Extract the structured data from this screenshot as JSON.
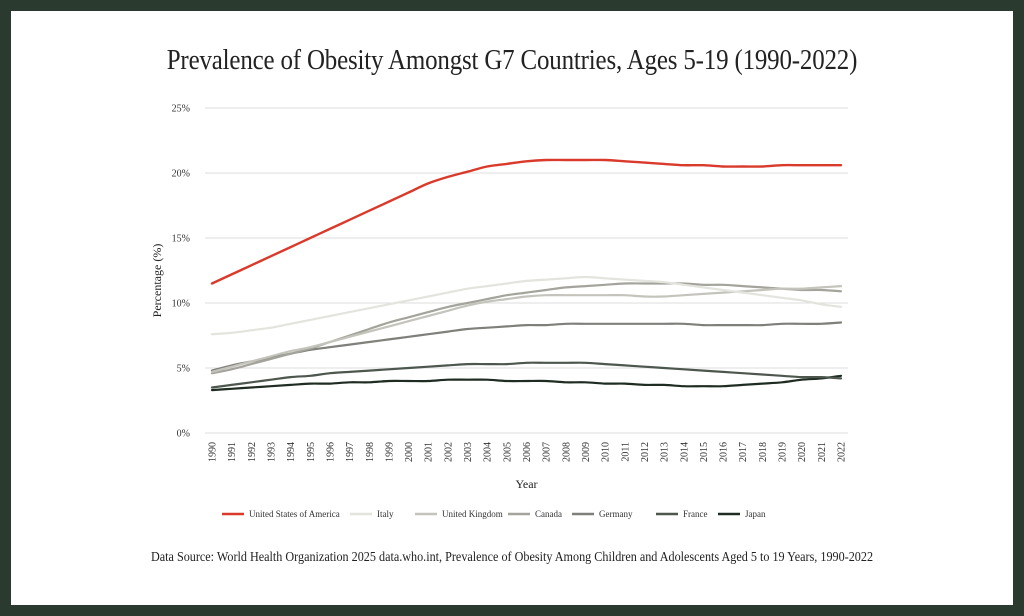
{
  "chart_data": {
    "type": "line",
    "title": "Prevalence of Obesity Amongst G7 Countries, Ages 5-19 (1990-2022)",
    "xlabel": "Year",
    "ylabel": "Percentage (%)",
    "ylim": [
      0,
      25
    ],
    "yticks": [
      0,
      5,
      10,
      15,
      20,
      25
    ],
    "ytick_labels": [
      "0%",
      "5%",
      "10%",
      "15%",
      "20%",
      "25%"
    ],
    "grid": "horizontal",
    "legend_position": "bottom",
    "x": [
      1990,
      1991,
      1992,
      1993,
      1994,
      1995,
      1996,
      1997,
      1998,
      1999,
      2000,
      2001,
      2002,
      2003,
      2004,
      2005,
      2006,
      2007,
      2008,
      2009,
      2010,
      2011,
      2012,
      2013,
      2014,
      2015,
      2016,
      2017,
      2018,
      2019,
      2020,
      2021,
      2022
    ],
    "series": [
      {
        "name": "United States of America",
        "color": "#d93a2b",
        "values": [
          11.5,
          12.2,
          12.9,
          13.6,
          14.3,
          15.0,
          15.7,
          16.4,
          17.1,
          17.8,
          18.5,
          19.2,
          19.7,
          20.1,
          20.5,
          20.7,
          20.9,
          21.0,
          21.0,
          21.0,
          21.0,
          20.9,
          20.8,
          20.7,
          20.6,
          20.6,
          20.5,
          20.5,
          20.5,
          20.6,
          20.6,
          20.6,
          20.6
        ]
      },
      {
        "name": "Italy",
        "color": "#e4e4de",
        "values": [
          7.6,
          7.7,
          7.9,
          8.1,
          8.4,
          8.7,
          9.0,
          9.3,
          9.6,
          9.9,
          10.2,
          10.5,
          10.8,
          11.1,
          11.3,
          11.5,
          11.7,
          11.8,
          11.9,
          12.0,
          11.9,
          11.8,
          11.7,
          11.6,
          11.4,
          11.2,
          11.0,
          10.8,
          10.6,
          10.4,
          10.2,
          9.9,
          9.7
        ]
      },
      {
        "name": "United Kingdom",
        "color": "#c4c4bc",
        "values": [
          4.7,
          5.1,
          5.5,
          5.9,
          6.3,
          6.6,
          7.0,
          7.4,
          7.8,
          8.2,
          8.6,
          9.0,
          9.4,
          9.8,
          10.1,
          10.3,
          10.5,
          10.6,
          10.6,
          10.6,
          10.6,
          10.6,
          10.5,
          10.5,
          10.6,
          10.7,
          10.8,
          10.9,
          11.0,
          11.1,
          11.1,
          11.2,
          11.3
        ]
      },
      {
        "name": "Canada",
        "color": "#a4a49c",
        "values": [
          4.6,
          4.9,
          5.3,
          5.7,
          6.1,
          6.5,
          7.0,
          7.5,
          8.0,
          8.5,
          8.9,
          9.3,
          9.7,
          10.0,
          10.3,
          10.6,
          10.8,
          11.0,
          11.2,
          11.3,
          11.4,
          11.5,
          11.5,
          11.5,
          11.5,
          11.4,
          11.4,
          11.3,
          11.2,
          11.1,
          11.0,
          11.0,
          10.9
        ]
      },
      {
        "name": "Germany",
        "color": "#7f807a",
        "values": [
          4.8,
          5.2,
          5.5,
          5.8,
          6.1,
          6.4,
          6.6,
          6.8,
          7.0,
          7.2,
          7.4,
          7.6,
          7.8,
          8.0,
          8.1,
          8.2,
          8.3,
          8.3,
          8.4,
          8.4,
          8.4,
          8.4,
          8.4,
          8.4,
          8.4,
          8.3,
          8.3,
          8.3,
          8.3,
          8.4,
          8.4,
          8.4,
          8.5
        ]
      },
      {
        "name": "France",
        "color": "#4d574e",
        "values": [
          3.5,
          3.7,
          3.9,
          4.1,
          4.3,
          4.4,
          4.6,
          4.7,
          4.8,
          4.9,
          5.0,
          5.1,
          5.2,
          5.3,
          5.3,
          5.3,
          5.4,
          5.4,
          5.4,
          5.4,
          5.3,
          5.2,
          5.1,
          5.0,
          4.9,
          4.8,
          4.7,
          4.6,
          4.5,
          4.4,
          4.3,
          4.3,
          4.2
        ]
      },
      {
        "name": "Japan",
        "color": "#1f2c22",
        "values": [
          3.3,
          3.4,
          3.5,
          3.6,
          3.7,
          3.8,
          3.8,
          3.9,
          3.9,
          4.0,
          4.0,
          4.0,
          4.1,
          4.1,
          4.1,
          4.0,
          4.0,
          4.0,
          3.9,
          3.9,
          3.8,
          3.8,
          3.7,
          3.7,
          3.6,
          3.6,
          3.6,
          3.7,
          3.8,
          3.9,
          4.1,
          4.2,
          4.4
        ]
      }
    ]
  },
  "source_text": "Data Source: World Health Organization 2025 data.who.int, Prevalence of Obesity Among Children and Adolescents Aged 5 to 19 Years, 1990-2022"
}
